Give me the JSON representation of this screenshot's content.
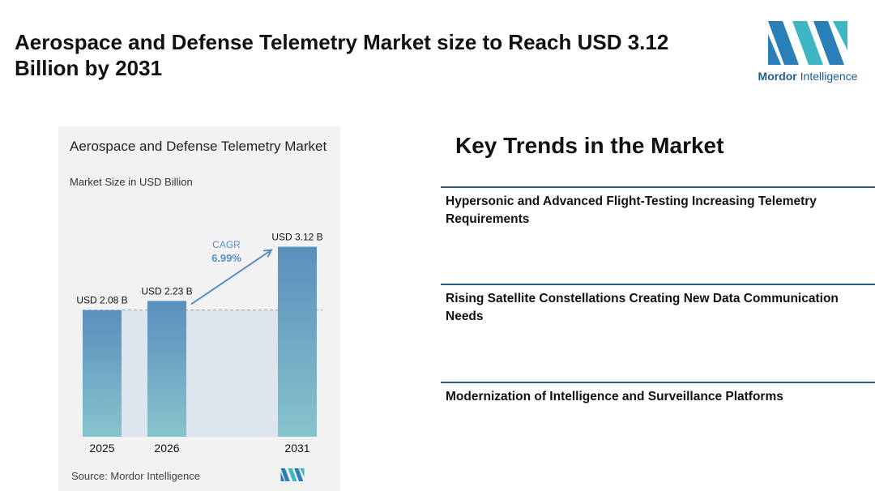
{
  "page": {
    "title": "Aerospace and Defense Telemetry Market size to Reach USD 3.12 Billion by 2031"
  },
  "logo": {
    "brand_bold": "Mordor",
    "brand_rest": " Intelligence",
    "icon": "mordor-intelligence-logo-icon"
  },
  "chart_data": {
    "type": "bar",
    "title": "Aerospace and Defense Telemetry Market",
    "subtitle": "Market Size in USD Billion",
    "categories": [
      "2025",
      "2026",
      "2031"
    ],
    "values": [
      2.08,
      2.23,
      3.12
    ],
    "value_labels": [
      "USD 2.08 B",
      "USD 2.23 B",
      "USD 3.12 B"
    ],
    "cagr_label": "CAGR",
    "cagr_value": "6.99%",
    "ylim": [
      0,
      3.5
    ],
    "source": "Source:  Mordor Intelligence",
    "colors": {
      "bar_top": "#5a8fbd",
      "bar_bottom": "#86c4cc",
      "band": "#dde6ef",
      "arrow": "#5a8fbd",
      "cagr": "#5a8fbd"
    }
  },
  "trends": {
    "heading": "Key Trends in the Market",
    "items": [
      "Hypersonic and Advanced Flight-Testing Increasing Telemetry Requirements",
      "Rising Satellite Constellations Creating New Data Communication Needs",
      "Modernization of Intelligence and Surveillance Platforms"
    ]
  }
}
